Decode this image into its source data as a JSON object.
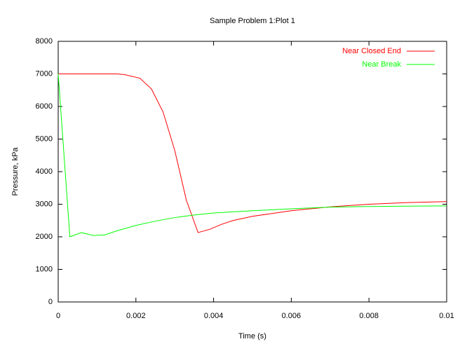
{
  "chart_data": {
    "type": "line",
    "title": "Sample Problem 1:Plot 1",
    "x_label": "Time (s)",
    "y_label": "Pressure, kPa",
    "xlim": [
      0,
      0.01
    ],
    "xticks": [
      0,
      0.002,
      0.004,
      0.006,
      0.008,
      0.01
    ],
    "ylim": [
      0,
      8000
    ],
    "yticks": [
      0,
      1000,
      2000,
      3000,
      4000,
      5000,
      6000,
      7000,
      8000
    ],
    "legend": "top right",
    "series": [
      {
        "name": "Near Closed End",
        "color": "#ff0000",
        "x": [
          0,
          0.0005,
          0.001,
          0.0015,
          0.0017,
          0.0021,
          0.0024,
          0.0027,
          0.003,
          0.0033,
          0.0036,
          0.0039,
          0.0042,
          0.0045,
          0.005,
          0.006,
          0.007,
          0.008,
          0.009,
          0.01
        ],
        "values": [
          7000,
          7000,
          7000,
          7000,
          6980,
          6870,
          6540,
          5830,
          4650,
          3120,
          2130,
          2230,
          2380,
          2500,
          2630,
          2800,
          2920,
          3000,
          3050,
          3080
        ]
      },
      {
        "name": "Near Break",
        "color": "#00ff00",
        "x": [
          0,
          0.0003,
          0.0006,
          0.0009,
          0.0012,
          0.0015,
          0.002,
          0.0025,
          0.003,
          0.0035,
          0.004,
          0.005,
          0.006,
          0.007,
          0.008,
          0.009,
          0.01
        ],
        "values": [
          7000,
          2000,
          2130,
          2040,
          2060,
          2180,
          2350,
          2480,
          2590,
          2670,
          2730,
          2800,
          2860,
          2910,
          2930,
          2940,
          2950
        ]
      }
    ]
  }
}
